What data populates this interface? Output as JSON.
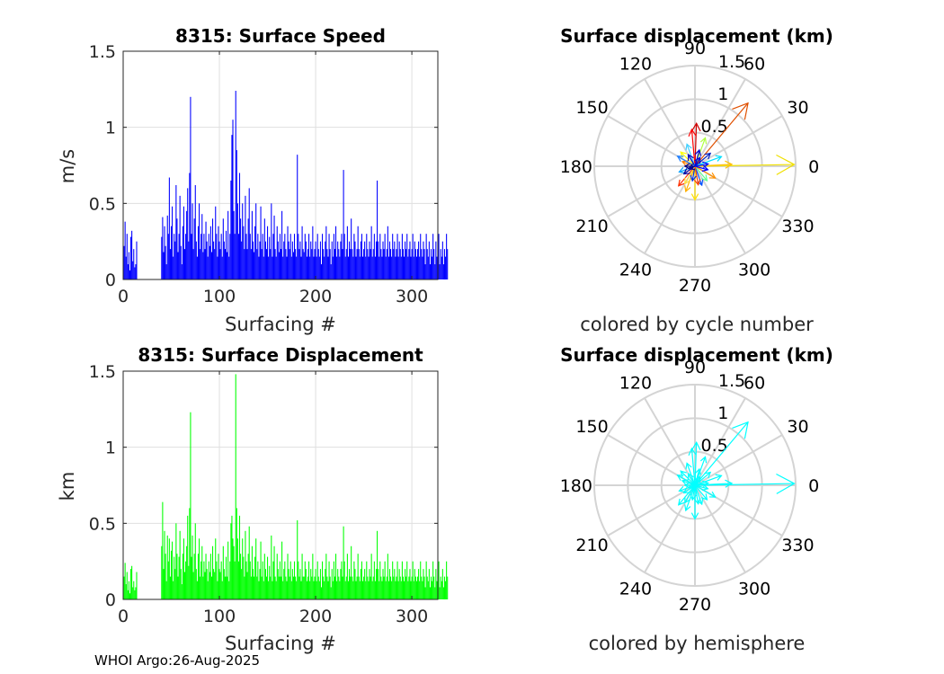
{
  "footer": "WHOI Argo:26-Aug-2025",
  "chart_data": [
    {
      "id": "speed",
      "type": "bar",
      "title": "8315: Surface Speed",
      "xlabel": "Surfacing #",
      "ylabel": "m/s",
      "xlim": [
        0,
        327
      ],
      "ylim": [
        0,
        1.5
      ],
      "xticks": [
        "0",
        "100",
        "200",
        "300"
      ],
      "yticks": [
        "0",
        "0.5",
        "1",
        "1.5"
      ],
      "grid": true,
      "color": "#0000ff",
      "values": [
        0.22,
        0.38,
        0.15,
        0.3,
        0.1,
        0.18,
        0.06,
        0.28,
        0.32,
        0.12,
        0.2,
        0.08,
        0.1,
        0.25,
        0,
        0,
        0,
        0,
        0,
        0,
        0,
        0,
        0,
        0,
        0,
        0,
        0,
        0,
        0,
        0,
        0,
        0,
        0,
        0,
        0,
        0,
        0,
        0,
        0,
        0.28,
        0.41,
        0.18,
        0.35,
        0.22,
        0.1,
        0.42,
        0.3,
        0.67,
        0.2,
        0.35,
        0.48,
        0.15,
        0.3,
        0.25,
        0.62,
        0.4,
        0.18,
        0.3,
        0.55,
        0.22,
        0.1,
        0.35,
        0.48,
        0.2,
        0.3,
        0.45,
        0.6,
        0.25,
        0.7,
        1.2,
        0.3,
        0.5,
        0.2,
        0.4,
        0.62,
        0.25,
        0.15,
        0.35,
        0.5,
        0.2,
        0.3,
        0.43,
        0.18,
        0.3,
        0.2,
        0.38,
        0.25,
        0.15,
        0.3,
        0.22,
        0.35,
        0.18,
        0.4,
        0.25,
        0.2,
        0.48,
        0.3,
        0.15,
        0.35,
        0.25,
        0.2,
        0.3,
        0.15,
        0.4,
        0.25,
        0.2,
        0.32,
        0.18,
        0.45,
        0.15,
        0.3,
        0.65,
        0.95,
        1.05,
        0.45,
        0.3,
        1.24,
        0.85,
        0.5,
        0.3,
        0.7,
        0.4,
        0.25,
        0.5,
        0.35,
        0.2,
        0.55,
        0.3,
        0.2,
        0.4,
        0.6,
        0.3,
        0.2,
        0.45,
        0.25,
        0.18,
        0.35,
        0.5,
        0.2,
        0.3,
        0.15,
        0.25,
        0.48,
        0.2,
        0.3,
        0.15,
        0.4,
        0.25,
        0.2,
        0.35,
        0.15,
        0.28,
        0.2,
        0.5,
        0.15,
        0.3,
        0.42,
        0.2,
        0.15,
        0.35,
        0.25,
        0.18,
        0.3,
        0.2,
        0.45,
        0.15,
        0.25,
        0.3,
        0.2,
        0.15,
        0.35,
        0.25,
        0.2,
        0.3,
        0.15,
        0.25,
        0.18,
        0.3,
        0.2,
        0.15,
        0.82,
        0.3,
        0.2,
        0.25,
        0.15,
        0.35,
        0.2,
        0.18,
        0.3,
        0.25,
        0.15,
        0.2,
        0.3,
        0.15,
        0.25,
        0.2,
        0.35,
        0.15,
        0.2,
        0.25,
        0.15,
        0.3,
        0.2,
        0.15,
        0.25,
        0.1,
        0.3,
        0.2,
        0.15,
        0.25,
        0.35,
        0.2,
        0.15,
        0.3,
        0.2,
        0.1,
        0.25,
        0.15,
        0.3,
        0.2,
        0.35,
        0.15,
        0.25,
        0.2,
        0.15,
        0.25,
        0.3,
        0.2,
        0.72,
        0.3,
        0.15,
        0.2,
        0.35,
        0.15,
        0.25,
        0.2,
        0.4,
        0.2,
        0.15,
        0.3,
        0.25,
        0.15,
        0.2,
        0.35,
        0.2,
        0.15,
        0.25,
        0.3,
        0.15,
        0.2,
        0.25,
        0.15,
        0.3,
        0.2,
        0.15,
        0.25,
        0.2,
        0.35,
        0.15,
        0.2,
        0.3,
        0.15,
        0.25,
        0.65,
        0.25,
        0.15,
        0.3,
        0.2,
        0.15,
        0.25,
        0.2,
        0.3,
        0.15,
        0.2,
        0.35,
        0.15,
        0.25,
        0.2,
        0.15,
        0.3,
        0.2,
        0.25,
        0.15,
        0.2,
        0.3,
        0.15,
        0.25,
        0.2,
        0.15,
        0.3,
        0.2,
        0.15,
        0.25,
        0.2,
        0.3,
        0.15,
        0.2,
        0.25,
        0.15,
        0.2,
        0.3,
        0.15,
        0.25,
        0.2,
        0.15,
        0.2,
        0.25,
        0.15,
        0.3,
        0.2,
        0.15,
        0.25,
        0.2,
        0.1,
        0.3,
        0.2,
        0.15,
        0.25,
        0.1,
        0.2,
        0.15,
        0.3,
        0.2,
        0.1,
        0.25,
        0.15,
        0.2,
        0.3,
        0.1,
        0.2,
        0.15,
        0.25,
        0.1,
        0.2,
        0.15,
        0.3,
        0.2
      ]
    },
    {
      "id": "displacement",
      "type": "bar",
      "title": "8315: Surface Displacement",
      "xlabel": "Surfacing #",
      "ylabel": "km",
      "xlim": [
        0,
        327
      ],
      "ylim": [
        0,
        1.5
      ],
      "xticks": [
        "0",
        "100",
        "200",
        "300"
      ],
      "yticks": [
        "0",
        "0.5",
        "1",
        "1.5"
      ],
      "grid": true,
      "color": "#00ff00",
      "values": [
        0.15,
        0.24,
        0.1,
        0.18,
        0.06,
        0.12,
        0.04,
        0.2,
        0.22,
        0.08,
        0.12,
        0.06,
        0.08,
        0.18,
        0,
        0,
        0,
        0,
        0,
        0,
        0,
        0,
        0,
        0,
        0,
        0,
        0,
        0,
        0,
        0,
        0,
        0,
        0,
        0,
        0,
        0,
        0,
        0,
        0,
        0.35,
        0.64,
        0.2,
        0.45,
        0.3,
        0.12,
        0.42,
        0.25,
        0.4,
        0.15,
        0.32,
        0.38,
        0.12,
        0.28,
        0.2,
        0.5,
        0.3,
        0.15,
        0.28,
        0.45,
        0.2,
        0.1,
        0.3,
        0.4,
        0.18,
        0.25,
        0.35,
        0.55,
        0.22,
        0.6,
        1.23,
        0.28,
        0.42,
        0.18,
        0.3,
        0.5,
        0.2,
        0.12,
        0.3,
        0.4,
        0.15,
        0.25,
        0.35,
        0.15,
        0.25,
        0.18,
        0.3,
        0.2,
        0.12,
        0.25,
        0.18,
        0.3,
        0.15,
        0.35,
        0.2,
        0.18,
        0.4,
        0.25,
        0.12,
        0.3,
        0.2,
        0.18,
        0.25,
        0.12,
        0.35,
        0.2,
        0.15,
        0.28,
        0.15,
        0.38,
        0.12,
        0.25,
        0.5,
        0.55,
        0.4,
        0.35,
        0.25,
        1.48,
        0.6,
        0.4,
        0.25,
        0.55,
        0.3,
        0.2,
        0.4,
        0.28,
        0.15,
        0.45,
        0.25,
        0.18,
        0.3,
        0.48,
        0.25,
        0.15,
        0.35,
        0.2,
        0.15,
        0.28,
        0.4,
        0.15,
        0.25,
        0.12,
        0.2,
        0.38,
        0.15,
        0.25,
        0.12,
        0.3,
        0.2,
        0.15,
        0.28,
        0.12,
        0.22,
        0.15,
        0.42,
        0.12,
        0.25,
        0.35,
        0.15,
        0.12,
        0.3,
        0.2,
        0.15,
        0.25,
        0.15,
        0.38,
        0.12,
        0.2,
        0.25,
        0.15,
        0.12,
        0.3,
        0.2,
        0.15,
        0.25,
        0.12,
        0.2,
        0.15,
        0.25,
        0.15,
        0.12,
        0.52,
        0.25,
        0.15,
        0.2,
        0.12,
        0.3,
        0.15,
        0.15,
        0.25,
        0.2,
        0.12,
        0.15,
        0.25,
        0.12,
        0.2,
        0.15,
        0.3,
        0.12,
        0.15,
        0.2,
        0.12,
        0.25,
        0.15,
        0.12,
        0.2,
        0.08,
        0.25,
        0.15,
        0.12,
        0.2,
        0.3,
        0.15,
        0.12,
        0.25,
        0.15,
        0.08,
        0.2,
        0.12,
        0.25,
        0.15,
        0.3,
        0.12,
        0.2,
        0.15,
        0.12,
        0.2,
        0.25,
        0.15,
        0.48,
        0.25,
        0.12,
        0.15,
        0.3,
        0.12,
        0.2,
        0.15,
        0.35,
        0.15,
        0.12,
        0.25,
        0.2,
        0.12,
        0.15,
        0.3,
        0.15,
        0.12,
        0.2,
        0.25,
        0.12,
        0.15,
        0.2,
        0.12,
        0.25,
        0.15,
        0.12,
        0.2,
        0.15,
        0.3,
        0.12,
        0.15,
        0.25,
        0.12,
        0.2,
        0.45,
        0.2,
        0.12,
        0.25,
        0.15,
        0.12,
        0.2,
        0.15,
        0.25,
        0.12,
        0.15,
        0.3,
        0.12,
        0.2,
        0.15,
        0.12,
        0.25,
        0.15,
        0.2,
        0.12,
        0.15,
        0.25,
        0.12,
        0.2,
        0.15,
        0.12,
        0.25,
        0.15,
        0.12,
        0.2,
        0.15,
        0.25,
        0.12,
        0.15,
        0.2,
        0.12,
        0.15,
        0.25,
        0.12,
        0.2,
        0.15,
        0.12,
        0.15,
        0.2,
        0.12,
        0.25,
        0.15,
        0.12,
        0.2,
        0.15,
        0.08,
        0.25,
        0.15,
        0.12,
        0.2,
        0.08,
        0.15,
        0.12,
        0.25,
        0.15,
        0.08,
        0.2,
        0.12,
        0.15,
        0.25,
        0.08,
        0.15,
        0.12,
        0.2,
        0.08,
        0.15,
        0.12,
        0.25,
        0.15
      ]
    },
    {
      "id": "polar-cycle",
      "type": "compass",
      "title": "Surface displacement (km)",
      "caption": "colored by cycle number",
      "rlim": [
        0,
        1.5
      ],
      "rticks": [
        "0.5",
        "1",
        "1.5"
      ],
      "angle_ticks": [
        "0",
        "30",
        "60",
        "90",
        "120",
        "150",
        "180",
        "210",
        "240",
        "270",
        "300",
        "330"
      ],
      "vectors": [
        {
          "angle": 1,
          "r": 1.48,
          "color": "#f0e000"
        },
        {
          "angle": 3,
          "r": 0.55,
          "color": "#ffc000"
        },
        {
          "angle": 50,
          "r": 1.23,
          "color": "#e05000"
        },
        {
          "angle": 88,
          "r": 0.64,
          "color": "#d00000"
        },
        {
          "angle": 95,
          "r": 0.55,
          "color": "#ff0000"
        },
        {
          "angle": 270,
          "r": 0.5,
          "color": "#ffe000"
        },
        {
          "angle": 110,
          "r": 0.35,
          "color": "#40d0ff"
        },
        {
          "angle": 135,
          "r": 0.3,
          "color": "#ffff00"
        },
        {
          "angle": 160,
          "r": 0.2,
          "color": "#ff8000"
        },
        {
          "angle": 200,
          "r": 0.25,
          "color": "#00a0ff"
        },
        {
          "angle": 230,
          "r": 0.38,
          "color": "#ff3000"
        },
        {
          "angle": 250,
          "r": 0.4,
          "color": "#ffb000"
        },
        {
          "angle": 290,
          "r": 0.3,
          "color": "#0050ff"
        },
        {
          "angle": 310,
          "r": 0.28,
          "color": "#60ff90"
        },
        {
          "angle": 330,
          "r": 0.35,
          "color": "#ff9000"
        },
        {
          "angle": 20,
          "r": 0.42,
          "color": "#00e0ff"
        },
        {
          "angle": 40,
          "r": 0.3,
          "color": "#0020c0"
        },
        {
          "angle": 70,
          "r": 0.45,
          "color": "#b0ff40"
        },
        {
          "angle": 120,
          "r": 0.2,
          "color": "#0000c0"
        },
        {
          "angle": 180,
          "r": 0.15,
          "color": "#000080"
        },
        {
          "angle": 215,
          "r": 0.2,
          "color": "#0000a0"
        },
        {
          "angle": 260,
          "r": 0.22,
          "color": "#0030e0"
        },
        {
          "angle": 345,
          "r": 0.2,
          "color": "#0000ff"
        },
        {
          "angle": 75,
          "r": 0.25,
          "color": "#0000d0"
        },
        {
          "angle": 150,
          "r": 0.3,
          "color": "#2080ff"
        },
        {
          "angle": 240,
          "r": 0.3,
          "color": "#ffe040"
        },
        {
          "angle": 280,
          "r": 0.28,
          "color": "#ff4000"
        },
        {
          "angle": 10,
          "r": 0.2,
          "color": "#0010ff"
        },
        {
          "angle": 60,
          "r": 0.15,
          "color": "#0000e0"
        },
        {
          "angle": 200,
          "r": 0.1,
          "color": "#000090"
        }
      ]
    },
    {
      "id": "polar-hemisphere",
      "type": "compass",
      "title": "Surface displacement (km)",
      "caption": "colored by hemisphere",
      "rlim": [
        0,
        1.5
      ],
      "rticks": [
        "0.5",
        "1",
        "1.5"
      ],
      "angle_ticks": [
        "0",
        "30",
        "60",
        "90",
        "120",
        "150",
        "180",
        "210",
        "240",
        "270",
        "300",
        "330"
      ],
      "color": "#00ffff",
      "vectors": [
        {
          "angle": 1,
          "r": 1.48
        },
        {
          "angle": 3,
          "r": 0.55
        },
        {
          "angle": 50,
          "r": 1.23
        },
        {
          "angle": 88,
          "r": 0.64
        },
        {
          "angle": 95,
          "r": 0.55
        },
        {
          "angle": 270,
          "r": 0.5
        },
        {
          "angle": 110,
          "r": 0.35
        },
        {
          "angle": 135,
          "r": 0.3
        },
        {
          "angle": 160,
          "r": 0.2
        },
        {
          "angle": 200,
          "r": 0.25
        },
        {
          "angle": 230,
          "r": 0.38
        },
        {
          "angle": 250,
          "r": 0.4
        },
        {
          "angle": 290,
          "r": 0.3
        },
        {
          "angle": 310,
          "r": 0.28
        },
        {
          "angle": 330,
          "r": 0.35
        },
        {
          "angle": 20,
          "r": 0.42
        },
        {
          "angle": 40,
          "r": 0.3
        },
        {
          "angle": 70,
          "r": 0.45
        },
        {
          "angle": 120,
          "r": 0.2
        },
        {
          "angle": 180,
          "r": 0.15
        },
        {
          "angle": 215,
          "r": 0.2
        },
        {
          "angle": 260,
          "r": 0.22
        },
        {
          "angle": 345,
          "r": 0.2
        },
        {
          "angle": 75,
          "r": 0.25
        },
        {
          "angle": 150,
          "r": 0.3
        },
        {
          "angle": 240,
          "r": 0.3
        },
        {
          "angle": 280,
          "r": 0.28
        },
        {
          "angle": 10,
          "r": 0.2
        },
        {
          "angle": 60,
          "r": 0.15
        },
        {
          "angle": 200,
          "r": 0.1
        }
      ]
    }
  ]
}
